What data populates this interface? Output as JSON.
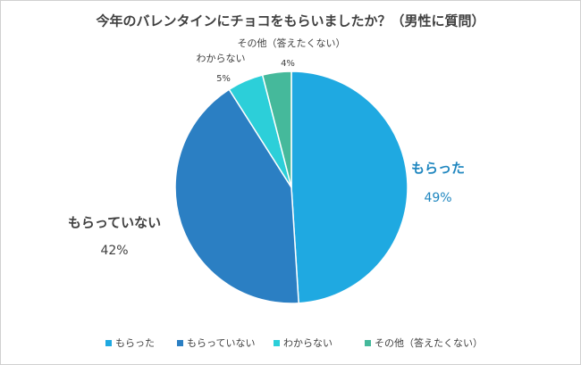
{
  "chart_data": {
    "type": "pie",
    "title": "今年のバレンタインにチョコをもらいましたか？（男性に質問）",
    "categories": [
      "もらった",
      "もらっていない",
      "わからない",
      "その他（答えたくない）"
    ],
    "values": [
      49,
      42,
      5,
      4
    ],
    "value_labels": [
      "49%",
      "42%",
      "5%",
      "4%"
    ],
    "colors": [
      "#1fa9e1",
      "#2b7fc3",
      "#2ccfd9",
      "#45b99b"
    ],
    "legend": "bottom"
  }
}
